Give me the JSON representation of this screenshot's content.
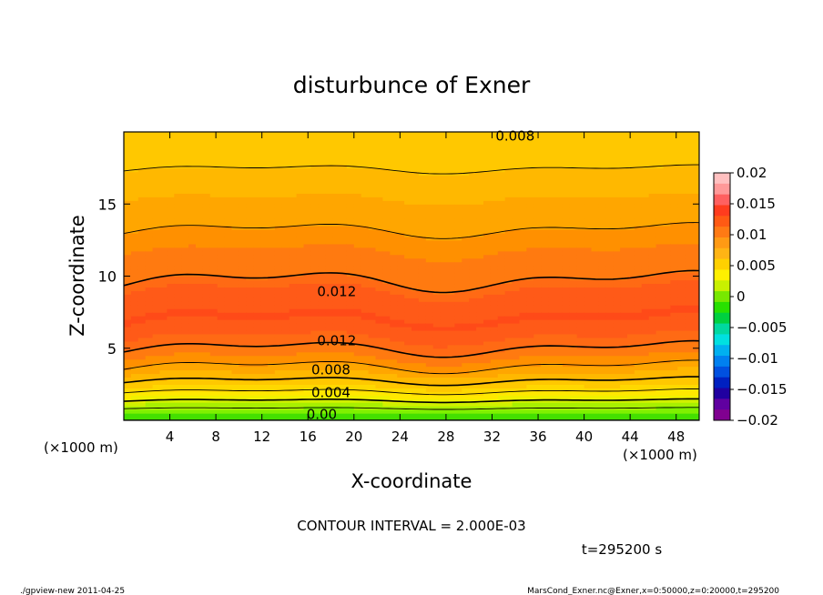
{
  "chart_data": {
    "type": "heatmap",
    "title": "disturbunce of Exner",
    "xlabel": "X-coordinate",
    "ylabel": "Z-coordinate",
    "x_units": "(×1000 m)",
    "xlim": [
      0,
      50
    ],
    "ylim": [
      0,
      20
    ],
    "x_ticks": [
      4,
      8,
      12,
      16,
      20,
      24,
      28,
      32,
      36,
      40,
      44,
      48
    ],
    "y_ticks": [
      5,
      10,
      15
    ],
    "contour_interval_label": "CONTOUR INTERVAL = 2.000E-03",
    "time_label": "t=295200 s",
    "contour_labels": [
      {
        "text": "0.008",
        "value": 0.008,
        "x": 34,
        "y": 19.4
      },
      {
        "text": "0.012",
        "value": 0.012,
        "x": 18.5,
        "y": 8.6
      },
      {
        "text": "0.012",
        "value": 0.012,
        "x": 18.5,
        "y": 5.2
      },
      {
        "text": "0.008",
        "value": 0.008,
        "x": 18,
        "y": 3.2
      },
      {
        "text": "0.004",
        "value": 0.004,
        "x": 18,
        "y": 1.6
      },
      {
        "text": "0.00",
        "value": 0.0,
        "x": 17.2,
        "y": 0.1
      }
    ],
    "profile": {
      "z": [
        0,
        0.5,
        1.0,
        1.5,
        2.0,
        2.5,
        3.0,
        3.5,
        4.0,
        4.5,
        5.0,
        5.5,
        6.0,
        6.5,
        7.0,
        8.0,
        9.0,
        9.7,
        10.5,
        11.5,
        12.5,
        13.5,
        15.0,
        16.5,
        18.0,
        20.0
      ],
      "value": [
        0.0,
        0.001,
        0.0025,
        0.0045,
        0.006,
        0.0075,
        0.0085,
        0.0095,
        0.0105,
        0.0112,
        0.012,
        0.0127,
        0.0133,
        0.0138,
        0.0141,
        0.0138,
        0.0131,
        0.012,
        0.0117,
        0.0112,
        0.0105,
        0.0098,
        0.0092,
        0.0085,
        0.0077,
        0.0075
      ]
    },
    "colorbar": {
      "labels": [
        "0.02",
        "0.015",
        "0.01",
        "0.005",
        "0",
        "−0.005",
        "−0.01",
        "−0.015",
        "−0.02"
      ],
      "levels": [
        0.02,
        0.015,
        0.01,
        0.005,
        0,
        -0.005,
        -0.01,
        -0.015,
        -0.02
      ],
      "colors": [
        "#ffc0c0",
        "#ff9999",
        "#ff6060",
        "#ff3c1e",
        "#ff5a14",
        "#ff7a14",
        "#ff9a14",
        "#ffb414",
        "#ffd000",
        "#fff000",
        "#c8f000",
        "#78e800",
        "#28e000",
        "#00d040",
        "#00d8a0",
        "#00e0e0",
        "#00b0f0",
        "#0080f0",
        "#0050e0",
        "#0020c0",
        "#2000a0",
        "#6000a0",
        "#800090"
      ]
    },
    "band_colors": [
      {
        "v": 0.0,
        "c": "#44e000"
      },
      {
        "v": 0.001,
        "c": "#80f000"
      },
      {
        "v": 0.002,
        "c": "#a8f000"
      },
      {
        "v": 0.003,
        "c": "#d0f000"
      },
      {
        "v": 0.004,
        "c": "#f0f000"
      },
      {
        "v": 0.005,
        "c": "#ffe800"
      },
      {
        "v": 0.006,
        "c": "#ffd800"
      },
      {
        "v": 0.007,
        "c": "#ffc800"
      },
      {
        "v": 0.008,
        "c": "#ffb800"
      },
      {
        "v": 0.009,
        "c": "#ffa600"
      },
      {
        "v": 0.01,
        "c": "#ff9000"
      },
      {
        "v": 0.011,
        "c": "#ff7a10"
      },
      {
        "v": 0.012,
        "c": "#ff6a14"
      },
      {
        "v": 0.013,
        "c": "#ff5a18"
      },
      {
        "v": 0.014,
        "c": "#ff4a18"
      }
    ]
  },
  "footer": {
    "left": "./gpview-new 2011-04-25",
    "right": "MarsCond_Exner.nc@Exner,x=0:50000,z=0:20000,t=295200"
  }
}
